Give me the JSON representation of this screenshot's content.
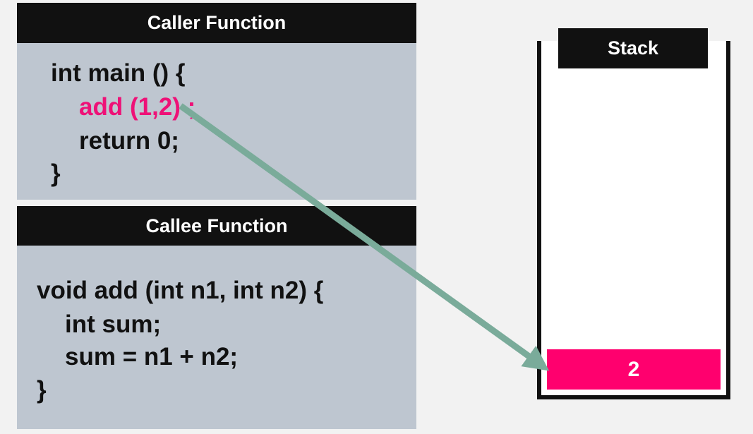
{
  "caller": {
    "header": "Caller Function",
    "lines": [
      {
        "text": "int main () {",
        "highlight": false
      },
      {
        "text": "add (1,2) ;",
        "highlight": true
      },
      {
        "text": "return 0;",
        "highlight": false
      },
      {
        "text": "}",
        "highlight": false
      }
    ]
  },
  "callee": {
    "header": "Callee Function",
    "lines": [
      {
        "text": "void add (int n1, int n2) {"
      },
      {
        "text": "int sum;"
      },
      {
        "text": "sum = n1 + n2;"
      },
      {
        "text": "}"
      }
    ]
  },
  "stack": {
    "label": "Stack",
    "frames": [
      {
        "value": "2"
      }
    ]
  },
  "colors": {
    "highlight": "#ee1177",
    "frame": "#ff006e",
    "arrow": "#7aab9a",
    "panel": "#bec6d0",
    "header": "#111111"
  }
}
